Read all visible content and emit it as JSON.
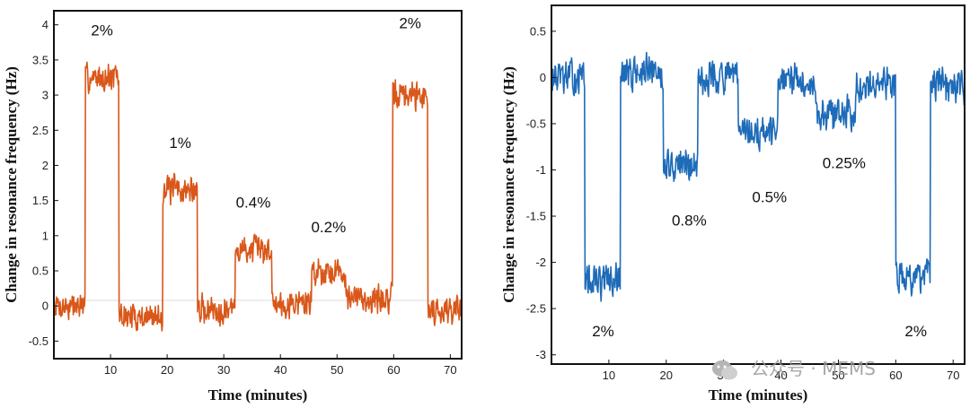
{
  "watermark": {
    "text": "公众号 · MEMS",
    "icon": "wechat-icon"
  },
  "chart_data": [
    {
      "type": "line",
      "title": "",
      "xlabel": "Time (minutes)",
      "ylabel": "Change in resonance frequency (Hz)",
      "color": "#d9571a",
      "xlim": [
        0,
        72
      ],
      "ylim": [
        -0.75,
        4.2
      ],
      "xticks": [
        10,
        20,
        30,
        40,
        50,
        60,
        70
      ],
      "yticks": [
        -0.5,
        0,
        0.5,
        1,
        1.5,
        2,
        2.5,
        3,
        3.5,
        4
      ],
      "ytick_labels": [
        "-0.5",
        "0",
        "0.5",
        "1",
        "1.5",
        "2",
        "2.5",
        "3",
        "3.5",
        "4"
      ],
      "noise": 0.22,
      "segments": [
        {
          "from": 0,
          "to": 5.5,
          "level": 0.0
        },
        {
          "from": 5.5,
          "to": 11.5,
          "level": 3.25
        },
        {
          "from": 11.5,
          "to": 19.2,
          "level": -0.15
        },
        {
          "from": 19.2,
          "to": 25.3,
          "level": 1.65
        },
        {
          "from": 25.3,
          "to": 32.0,
          "level": -0.05
        },
        {
          "from": 32.0,
          "to": 38.5,
          "level": 0.8
        },
        {
          "from": 38.5,
          "to": 45.5,
          "level": 0.05
        },
        {
          "from": 45.5,
          "to": 51.5,
          "level": 0.5
        },
        {
          "from": 51.5,
          "to": 59.8,
          "level": 0.1
        },
        {
          "from": 59.8,
          "to": 66.0,
          "level": 3.0
        },
        {
          "from": 66.0,
          "to": 72,
          "level": -0.05
        }
      ],
      "annotations": [
        {
          "text": "2%",
          "x": 8.5,
          "y": 3.85
        },
        {
          "text": "1%",
          "x": 22.3,
          "y": 2.25
        },
        {
          "text": "0.4%",
          "x": 35.2,
          "y": 1.4
        },
        {
          "text": "0.2%",
          "x": 48.5,
          "y": 1.05
        },
        {
          "text": "2%",
          "x": 62.9,
          "y": 3.95
        }
      ]
    },
    {
      "type": "line",
      "title": "",
      "xlabel": "Time (minutes)",
      "ylabel": "Change in resonance frequency (Hz)",
      "color": "#1e6bb8",
      "xlim": [
        0,
        72
      ],
      "ylim": [
        -3.1,
        0.78
      ],
      "xticks": [
        10,
        20,
        30,
        40,
        50,
        60,
        70
      ],
      "yticks": [
        -3,
        -2.5,
        -2,
        -1.5,
        -1,
        -0.5,
        0,
        0.5
      ],
      "ytick_labels": [
        "-3",
        "-2.5",
        "-2",
        "-1.5",
        "-1",
        "-0.5",
        "0",
        "0.5"
      ],
      "noise": 0.2,
      "segments": [
        {
          "from": 0,
          "to": 5.8,
          "level": 0.0
        },
        {
          "from": 5.8,
          "to": 12.0,
          "level": -2.2
        },
        {
          "from": 12.0,
          "to": 19.5,
          "level": 0.05
        },
        {
          "from": 19.5,
          "to": 25.5,
          "level": -0.95
        },
        {
          "from": 25.5,
          "to": 32.5,
          "level": 0.0
        },
        {
          "from": 32.5,
          "to": 39.5,
          "level": -0.6
        },
        {
          "from": 39.5,
          "to": 46.0,
          "level": -0.05
        },
        {
          "from": 46.0,
          "to": 53.0,
          "level": -0.4
        },
        {
          "from": 53.0,
          "to": 60.0,
          "level": -0.05
        },
        {
          "from": 60.0,
          "to": 66.0,
          "level": -2.15
        },
        {
          "from": 66.0,
          "to": 72,
          "level": -0.1
        }
      ],
      "annotations": [
        {
          "text": "2%",
          "x": 9.0,
          "y": -2.8
        },
        {
          "text": "0.8%",
          "x": 24.0,
          "y": -1.6
        },
        {
          "text": "0.5%",
          "x": 38.0,
          "y": -1.35
        },
        {
          "text": "0.25%",
          "x": 51.0,
          "y": -0.98
        },
        {
          "text": "2%",
          "x": 63.5,
          "y": -2.8
        }
      ]
    }
  ]
}
